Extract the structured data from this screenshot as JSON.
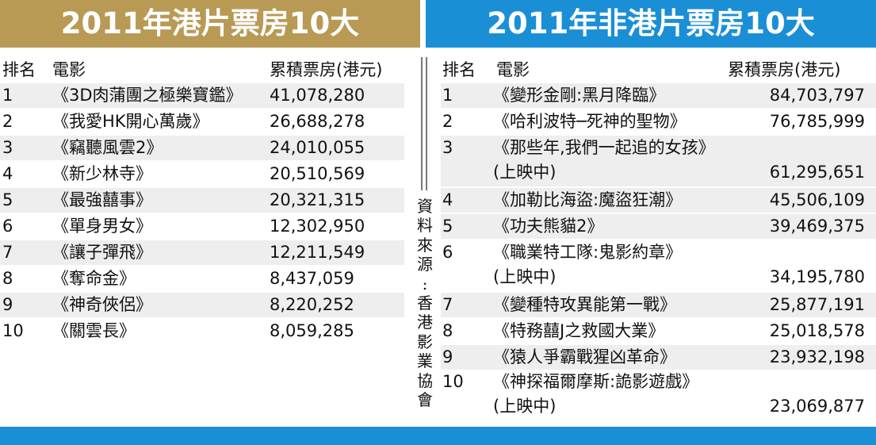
{
  "left": {
    "title": "2011年港片票房10大",
    "headers": {
      "rank": "排名",
      "film": "電影",
      "gross": "累積票房(港元)"
    },
    "rows": [
      {
        "rank": "1",
        "film": "《3D肉蒲團之極樂寶鑑》",
        "gross": "41,078,280"
      },
      {
        "rank": "2",
        "film": "《我愛HK開心萬歲》",
        "gross": "26,688,278"
      },
      {
        "rank": "3",
        "film": "《竊聽風雲2》",
        "gross": "24,010,055"
      },
      {
        "rank": "4",
        "film": "《新少林寺》",
        "gross": "20,510,569"
      },
      {
        "rank": "5",
        "film": "《最強囍事》",
        "gross": "20,321,315"
      },
      {
        "rank": "6",
        "film": "《單身男女》",
        "gross": "12,302,950"
      },
      {
        "rank": "7",
        "film": "《讓子彈飛》",
        "gross": "12,211,549"
      },
      {
        "rank": "8",
        "film": "《奪命金》",
        "gross": "8,437,059"
      },
      {
        "rank": "9",
        "film": "《神奇俠侶》",
        "gross": "8,220,252"
      },
      {
        "rank": "10",
        "film": "《關雲長》",
        "gross": "8,059,285"
      }
    ]
  },
  "right": {
    "title": "2011年非港片票房10大",
    "headers": {
      "rank": "排名",
      "film": "電影",
      "gross": "累積票房(港元)"
    },
    "rows": [
      {
        "rank": "1",
        "film": "《變形金剛:黑月降臨》",
        "gross": "84,703,797"
      },
      {
        "rank": "2",
        "film": "《哈利波特─死神的聖物》",
        "gross": "76,785,999"
      },
      {
        "rank": "3",
        "film": "《那些年,我們一起追的女孩》",
        "note": "(上映中)",
        "gross": "61,295,651"
      },
      {
        "rank": "4",
        "film": "《加勒比海盜:魔盜狂潮》",
        "gross": "45,506,109"
      },
      {
        "rank": "5",
        "film": "《功夫熊貓2》",
        "gross": "39,469,375"
      },
      {
        "rank": "6",
        "film": "《職業特工隊:鬼影約章》",
        "note": "(上映中)",
        "gross": "34,195,780"
      },
      {
        "rank": "7",
        "film": "《變種特攻異能第一戰》",
        "gross": "25,877,191"
      },
      {
        "rank": "8",
        "film": "《特務囍J之救國大業》",
        "gross": "25,018,578"
      },
      {
        "rank": "9",
        "film": "《猿人爭霸戰猩凶革命》",
        "gross": "23,932,198"
      },
      {
        "rank": "10",
        "film": "《神探福爾摩斯:詭影遊戲》",
        "note": "(上映中)",
        "gross": "23,069,877"
      }
    ]
  },
  "source": [
    "資",
    "料",
    "來",
    "源",
    ":",
    "香",
    "港",
    "影",
    "業",
    "協",
    "會"
  ],
  "colors": {
    "gold": "#b89a55",
    "blue": "#1a8fd6",
    "shade": "#eeeeee"
  }
}
